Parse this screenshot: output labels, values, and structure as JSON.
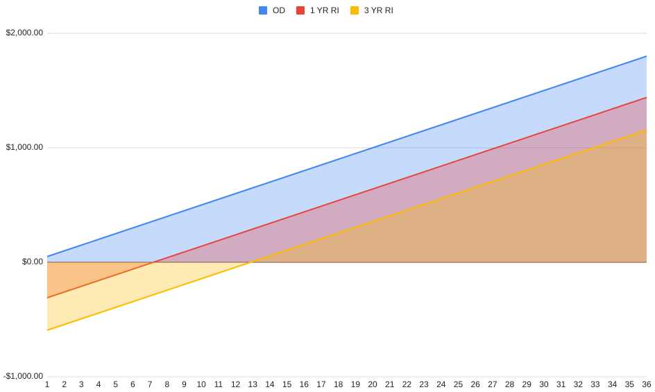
{
  "chart_data": {
    "type": "area",
    "categories": [
      "1",
      "2",
      "3",
      "4",
      "5",
      "6",
      "7",
      "8",
      "9",
      "10",
      "11",
      "12",
      "13",
      "14",
      "15",
      "16",
      "17",
      "18",
      "19",
      "20",
      "21",
      "22",
      "23",
      "24",
      "25",
      "26",
      "27",
      "28",
      "29",
      "30",
      "31",
      "32",
      "33",
      "34",
      "35",
      "36"
    ],
    "series": [
      {
        "name": "OD",
        "color": "#4285f4",
        "values": [
          50,
          100,
          150,
          200,
          250,
          300,
          350,
          400,
          450,
          500,
          550,
          600,
          650,
          700,
          750,
          800,
          850,
          900,
          950,
          1000,
          1050,
          1100,
          1150,
          1200,
          1250,
          1300,
          1350,
          1400,
          1450,
          1500,
          1550,
          1600,
          1650,
          1700,
          1750,
          1800
        ]
      },
      {
        "name": "1 YR RI",
        "color": "#ea4335",
        "values": [
          -310,
          -260,
          -210,
          -160,
          -110,
          -60,
          -10,
          40,
          90,
          140,
          190,
          240,
          290,
          340,
          390,
          440,
          490,
          540,
          590,
          640,
          690,
          740,
          790,
          840,
          890,
          940,
          990,
          1040,
          1090,
          1140,
          1190,
          1240,
          1290,
          1340,
          1390,
          1440
        ]
      },
      {
        "name": "3 YR RI",
        "color": "#fbbc04",
        "values": [
          -594,
          -544,
          -494,
          -444,
          -394,
          -344,
          -294,
          -244,
          -194,
          -144,
          -94,
          -44,
          6,
          56,
          106,
          156,
          206,
          256,
          306,
          356,
          406,
          456,
          506,
          556,
          606,
          656,
          706,
          756,
          806,
          856,
          906,
          956,
          1006,
          1056,
          1106,
          1156
        ]
      }
    ],
    "ylim": [
      -1000,
      2000
    ],
    "yticks": [
      {
        "value": -1000,
        "label": "-$1,000.00"
      },
      {
        "value": 0,
        "label": "$0.00"
      },
      {
        "value": 1000,
        "label": "$1,000.00"
      },
      {
        "value": 2000,
        "label": "$2,000.00"
      }
    ],
    "grid": true,
    "legend": "top"
  }
}
